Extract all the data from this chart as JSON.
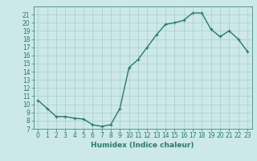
{
  "xlabel": "Humidex (Indice chaleur)",
  "x": [
    0,
    1,
    2,
    3,
    4,
    5,
    6,
    7,
    8,
    9,
    10,
    11,
    12,
    13,
    14,
    15,
    16,
    17,
    18,
    19,
    20,
    21,
    22,
    23
  ],
  "y": [
    10.5,
    9.5,
    8.5,
    8.5,
    8.3,
    8.2,
    7.5,
    7.3,
    7.5,
    9.5,
    14.5,
    15.5,
    17.0,
    18.5,
    19.8,
    20.0,
    20.3,
    21.2,
    21.2,
    19.2,
    18.3,
    19.0,
    18.0,
    16.5
  ],
  "line_color": "#2a7a6a",
  "marker": "+",
  "marker_size": 3,
  "bg_color": "#cce8e8",
  "grid_color": "#a8cece",
  "ylim": [
    7,
    22
  ],
  "xlim": [
    -0.5,
    23.5
  ],
  "yticks": [
    7,
    8,
    9,
    10,
    11,
    12,
    13,
    14,
    15,
    16,
    17,
    18,
    19,
    20,
    21
  ],
  "xticks": [
    0,
    1,
    2,
    3,
    4,
    5,
    6,
    7,
    8,
    9,
    10,
    11,
    12,
    13,
    14,
    15,
    16,
    17,
    18,
    19,
    20,
    21,
    22,
    23
  ],
  "tick_fontsize": 5.5,
  "xlabel_fontsize": 6.5,
  "line_width": 1.0
}
